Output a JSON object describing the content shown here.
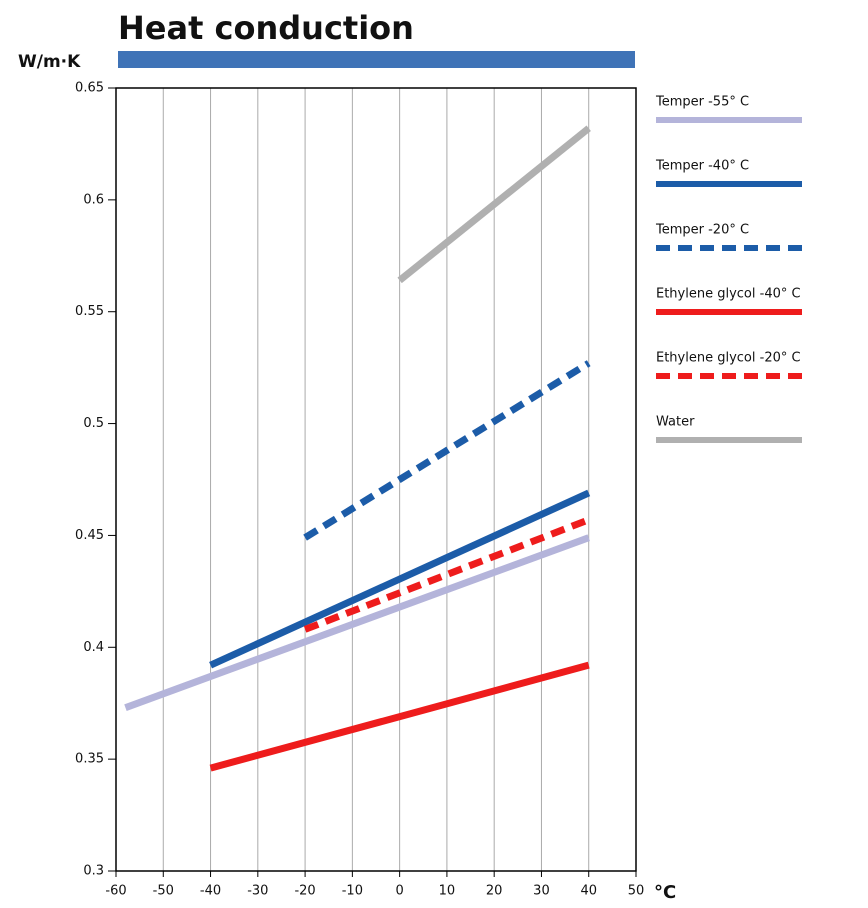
{
  "chart_data": {
    "type": "line",
    "title": "Heat conduction",
    "y_label": "W/m·K",
    "x_label": "°C",
    "xlim": [
      -60,
      50
    ],
    "xticks": [
      -60,
      -50,
      -40,
      -30,
      -20,
      -10,
      0,
      10,
      20,
      30,
      40,
      50
    ],
    "ylim": [
      0.3,
      0.65
    ],
    "yticks": [
      0.3,
      0.35,
      0.4,
      0.45,
      0.5,
      0.55,
      0.6,
      0.65
    ],
    "grid": true,
    "legend": "right",
    "series": [
      {
        "name": "Temper -55° C",
        "color": "#b4b4da",
        "dashed": false,
        "x": [
          -58,
          40
        ],
        "values": [
          0.373,
          0.449
        ]
      },
      {
        "name": "Temper -40° C",
        "color": "#1c5ca8",
        "dashed": false,
        "x": [
          -40,
          40
        ],
        "values": [
          0.392,
          0.469
        ]
      },
      {
        "name": "Temper -20° C",
        "color": "#1c5ca8",
        "dashed": true,
        "x": [
          -20,
          40
        ],
        "values": [
          0.449,
          0.527
        ]
      },
      {
        "name": "Ethylene glycol -40° C",
        "color": "#ee1c1c",
        "dashed": false,
        "x": [
          -40,
          40
        ],
        "values": [
          0.346,
          0.392
        ]
      },
      {
        "name": "Ethylene glycol -20° C",
        "color": "#ee1c1c",
        "dashed": true,
        "x": [
          -20,
          40
        ],
        "values": [
          0.408,
          0.457
        ]
      },
      {
        "name": "Water",
        "color": "#b0b0b0",
        "dashed": false,
        "x": [
          0,
          40
        ],
        "values": [
          0.564,
          0.632
        ]
      }
    ]
  }
}
